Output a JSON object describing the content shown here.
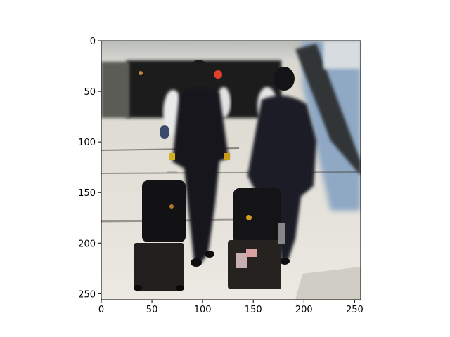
{
  "chart_data": {
    "type": "image",
    "xlim": [
      0,
      256
    ],
    "ylim": [
      256,
      0
    ],
    "x_ticks": [
      0,
      50,
      100,
      150,
      200,
      250
    ],
    "y_ticks": [
      0,
      50,
      100,
      150,
      200,
      250
    ],
    "x_tick_labels": [
      "0",
      "50",
      "100",
      "150",
      "200",
      "250"
    ],
    "y_tick_labels": [
      "0",
      "50",
      "100",
      "150",
      "200",
      "250"
    ],
    "grid": false
  },
  "image": {
    "scene": "two travelers in dark suits walking away through an airport terminal pulling black rolling suitcases"
  }
}
